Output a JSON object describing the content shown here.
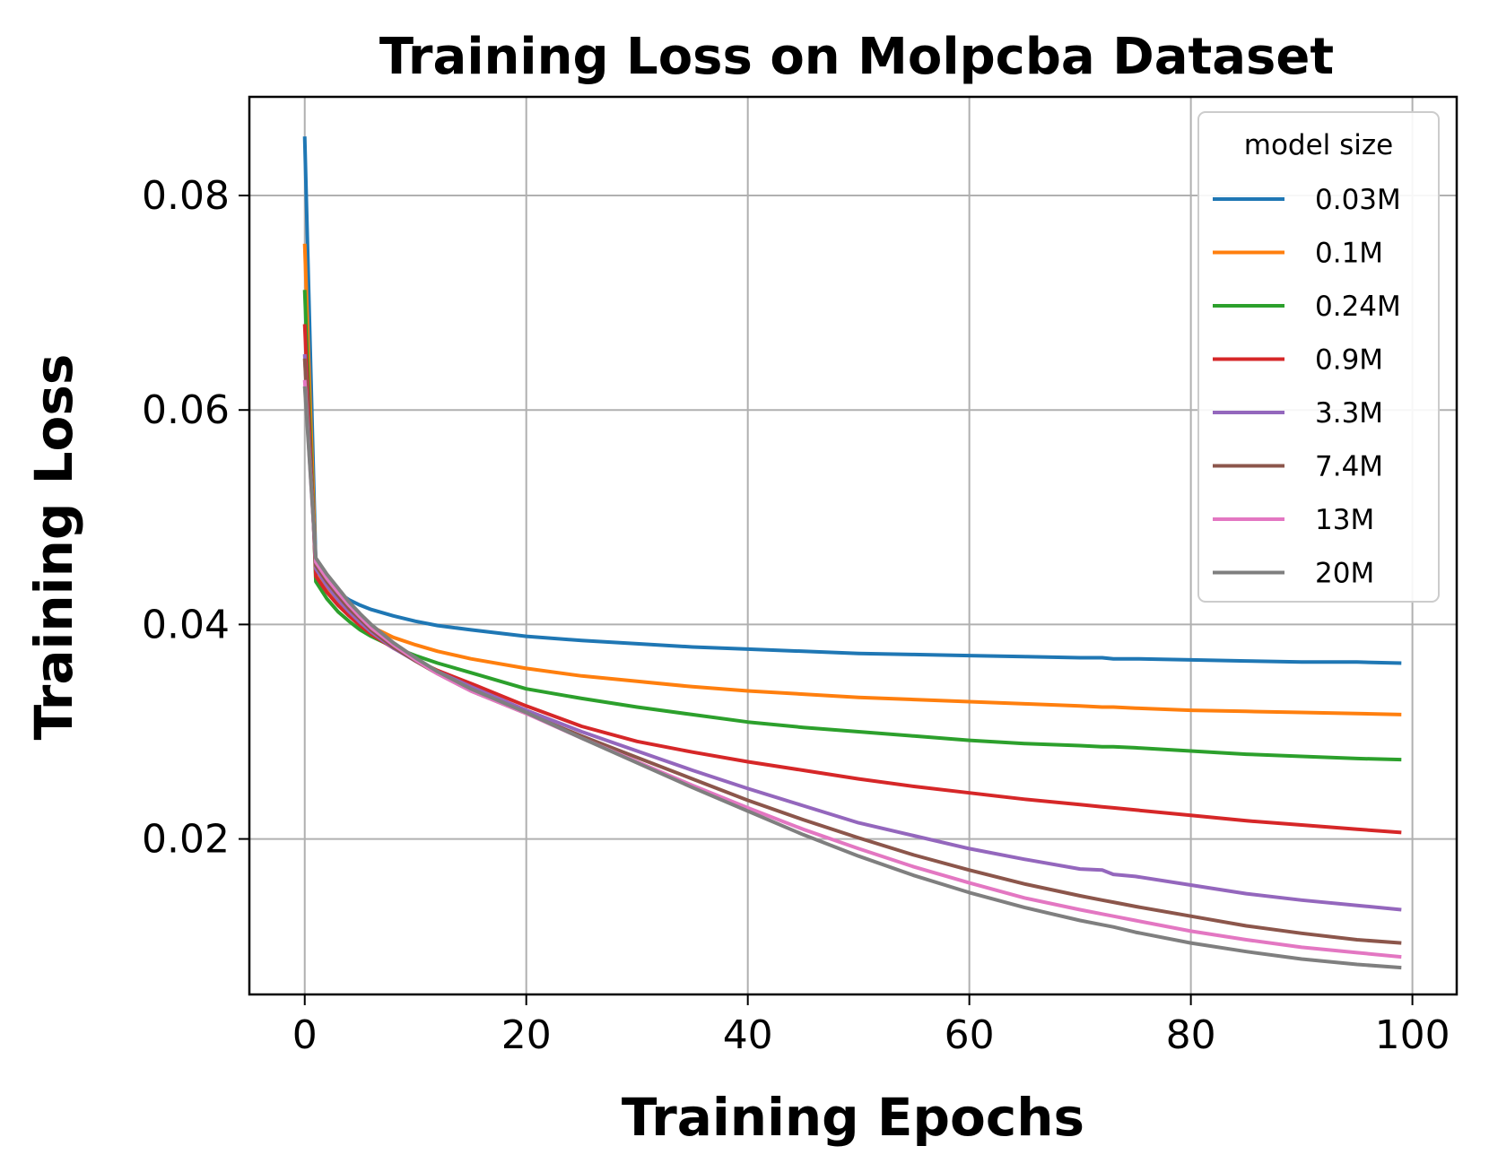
{
  "chart_data": {
    "type": "line",
    "title": "Training Loss on Molpcba Dataset",
    "xlabel": "Training Epochs",
    "ylabel": "Training Loss",
    "xlim": [
      -5,
      104
    ],
    "ylim": [
      0.0055,
      0.0892
    ],
    "grid": true,
    "x_ticks": [
      0,
      20,
      40,
      60,
      80,
      100
    ],
    "x_tick_labels": [
      "0",
      "20",
      "40",
      "60",
      "80",
      "100"
    ],
    "y_ticks": [
      0.02,
      0.04,
      0.06,
      0.08
    ],
    "y_tick_labels": [
      "0.02",
      "0.04",
      "0.06",
      "0.08"
    ],
    "legend": {
      "title": "model size",
      "location": "top-right"
    },
    "x": [
      0,
      1,
      2,
      3,
      4,
      5,
      6,
      8,
      10,
      12,
      15,
      20,
      25,
      30,
      35,
      40,
      45,
      50,
      55,
      60,
      65,
      70,
      72,
      73,
      75,
      80,
      85,
      90,
      95,
      99
    ],
    "series": [
      {
        "name": "0.03M",
        "color": "#1f77b4",
        "values": [
          0.0855,
          0.0455,
          0.044,
          0.043,
          0.0423,
          0.0418,
          0.0414,
          0.0408,
          0.0403,
          0.0399,
          0.0395,
          0.0389,
          0.0385,
          0.0382,
          0.0379,
          0.0377,
          0.0375,
          0.0373,
          0.0372,
          0.0371,
          0.037,
          0.0369,
          0.0369,
          0.0368,
          0.0368,
          0.0367,
          0.0366,
          0.0365,
          0.0365,
          0.0364
        ]
      },
      {
        "name": "0.1M",
        "color": "#ff7f0e",
        "values": [
          0.0755,
          0.045,
          0.0433,
          0.042,
          0.0412,
          0.0404,
          0.0398,
          0.0388,
          0.0381,
          0.0375,
          0.0368,
          0.0359,
          0.0352,
          0.0347,
          0.0342,
          0.0338,
          0.0335,
          0.0332,
          0.033,
          0.0328,
          0.0326,
          0.0324,
          0.0323,
          0.0323,
          0.0322,
          0.032,
          0.0319,
          0.0318,
          0.0317,
          0.0316
        ]
      },
      {
        "name": "0.24M",
        "color": "#2ca02c",
        "values": [
          0.0712,
          0.044,
          0.0424,
          0.0412,
          0.0403,
          0.0395,
          0.0389,
          0.0379,
          0.0371,
          0.0364,
          0.0355,
          0.034,
          0.0331,
          0.0323,
          0.0316,
          0.0309,
          0.0304,
          0.03,
          0.0296,
          0.0292,
          0.0289,
          0.0287,
          0.0286,
          0.0286,
          0.0285,
          0.0282,
          0.0279,
          0.0277,
          0.0275,
          0.0274
        ]
      },
      {
        "name": "0.9M",
        "color": "#d62728",
        "values": [
          0.068,
          0.0445,
          0.043,
          0.0418,
          0.0408,
          0.0399,
          0.0391,
          0.0378,
          0.0367,
          0.0357,
          0.0345,
          0.0324,
          0.0305,
          0.0291,
          0.0281,
          0.0272,
          0.0264,
          0.0256,
          0.0249,
          0.0243,
          0.0237,
          0.0232,
          0.023,
          0.0229,
          0.0227,
          0.0222,
          0.0217,
          0.0213,
          0.0209,
          0.0206
        ]
      },
      {
        "name": "3.3M",
        "color": "#9467bd",
        "values": [
          0.0652,
          0.0452,
          0.0436,
          0.0423,
          0.0412,
          0.0402,
          0.0393,
          0.0378,
          0.0366,
          0.0356,
          0.0342,
          0.032,
          0.03,
          0.0282,
          0.0264,
          0.0247,
          0.0231,
          0.0215,
          0.0203,
          0.0191,
          0.0181,
          0.0172,
          0.0171,
          0.0167,
          0.0165,
          0.0157,
          0.0149,
          0.0143,
          0.0138,
          0.0134
        ]
      },
      {
        "name": "7.4M",
        "color": "#8c564b",
        "values": [
          0.0648,
          0.0455,
          0.044,
          0.0427,
          0.0415,
          0.0405,
          0.0395,
          0.0379,
          0.0366,
          0.0354,
          0.0338,
          0.0317,
          0.0296,
          0.0276,
          0.0256,
          0.0236,
          0.0218,
          0.0201,
          0.0185,
          0.0171,
          0.0158,
          0.0147,
          0.0143,
          0.0141,
          0.0137,
          0.0128,
          0.0119,
          0.0112,
          0.0106,
          0.0103
        ]
      },
      {
        "name": "13M",
        "color": "#e377c2",
        "values": [
          0.0628,
          0.0458,
          0.0443,
          0.043,
          0.0418,
          0.0407,
          0.0397,
          0.0381,
          0.0367,
          0.0354,
          0.0338,
          0.0317,
          0.0294,
          0.0272,
          0.025,
          0.0229,
          0.0209,
          0.0191,
          0.0174,
          0.0159,
          0.0145,
          0.0134,
          0.013,
          0.0128,
          0.0124,
          0.0114,
          0.0106,
          0.0099,
          0.0094,
          0.009
        ]
      },
      {
        "name": "20M",
        "color": "#7f7f7f",
        "values": [
          0.0622,
          0.0462,
          0.0447,
          0.0434,
          0.0421,
          0.041,
          0.04,
          0.0383,
          0.0369,
          0.0356,
          0.034,
          0.0318,
          0.0294,
          0.0271,
          0.0248,
          0.0226,
          0.0204,
          0.0184,
          0.0166,
          0.015,
          0.0136,
          0.0124,
          0.012,
          0.0118,
          0.0113,
          0.0103,
          0.0095,
          0.0088,
          0.0083,
          0.008
        ]
      }
    ]
  }
}
